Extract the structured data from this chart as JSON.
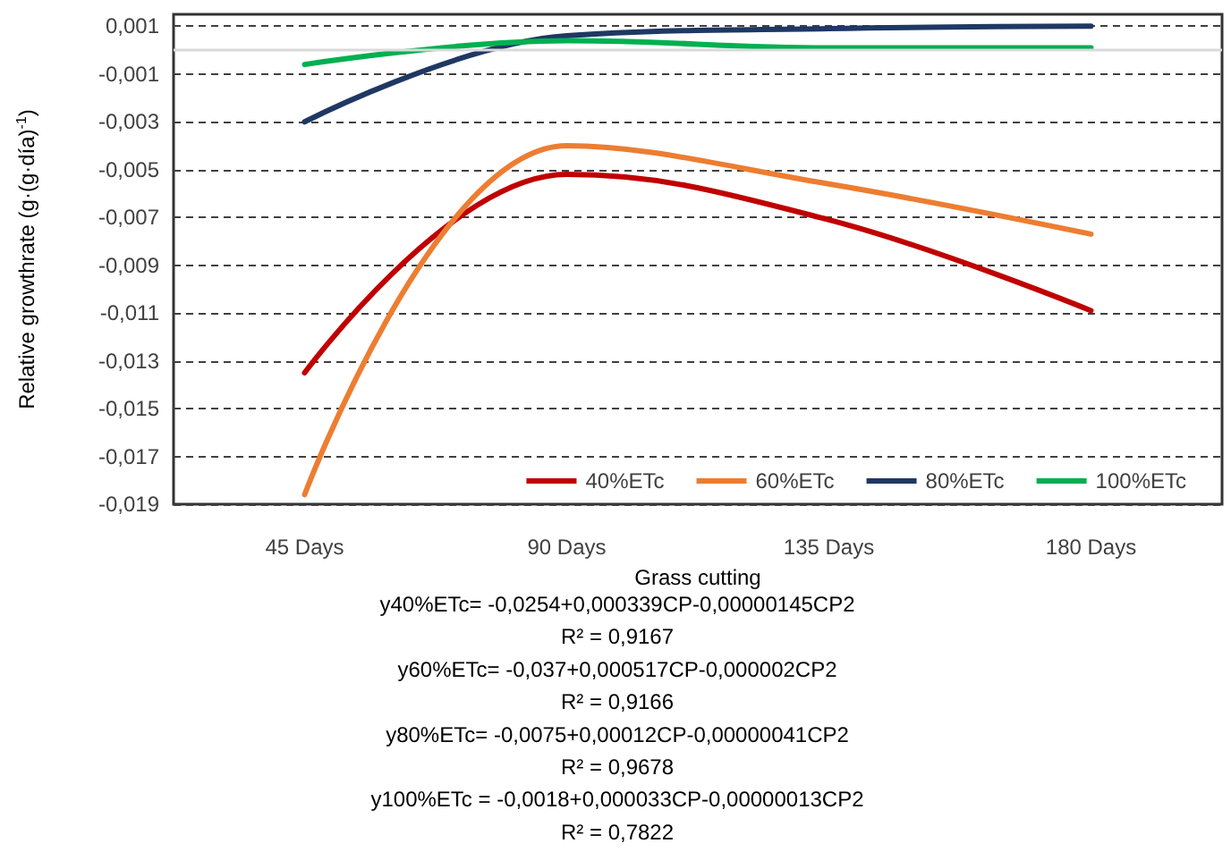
{
  "chart_data": {
    "type": "line",
    "xlabel": "Grass cutting",
    "ylabel": "Relative growthrate (g·(g·día)$^{-1}$)",
    "categories": [
      "45 Days",
      "90 Days",
      "135 Days",
      "180 Days"
    ],
    "series": [
      {
        "name": "40%ETc",
        "color": "#c00000",
        "values": [
          -0.0135,
          -0.0052,
          -0.0071,
          -0.0109
        ]
      },
      {
        "name": "60%ETc",
        "color": "#ed7d31",
        "values": [
          -0.0186,
          -0.004,
          -0.0056,
          -0.0077
        ]
      },
      {
        "name": "80%ETc",
        "color": "#1f3864",
        "values": [
          -0.003,
          0.0006,
          0.0009,
          0.001
        ]
      },
      {
        "name": "100%ETc",
        "color": "#00b050",
        "values": [
          -0.0006,
          0.0004,
          0.0001,
          0.0001
        ]
      }
    ],
    "ylim": [
      -0.019,
      0.0015
    ],
    "yticks": [
      {
        "value": 0.001,
        "label": "0,001"
      },
      {
        "value": -0.001,
        "label": "-0,001"
      },
      {
        "value": -0.003,
        "label": "-0,003"
      },
      {
        "value": -0.005,
        "label": "-0,005"
      },
      {
        "value": -0.007,
        "label": "-0,007"
      },
      {
        "value": -0.009,
        "label": "-0,009"
      },
      {
        "value": -0.011,
        "label": "-0,011"
      },
      {
        "value": -0.013,
        "label": "-0,013"
      },
      {
        "value": -0.015,
        "label": "-0,015"
      },
      {
        "value": -0.017,
        "label": "-0,017"
      },
      {
        "value": -0.019,
        "label": "-0,019"
      }
    ],
    "ref_lines": [
      {
        "axis": "y",
        "value": 0,
        "color": "#d9d9d9"
      }
    ],
    "grid": "y",
    "legend": "bottom right",
    "marker": "none",
    "line_style": "solid",
    "annotations": [
      "y40%ETc= -0,0254+0,000339CP-0,00000145CP2",
      "R² = 0,9167",
      "y60%ETc= -0,037+0,000517CP-0,000002CP2",
      "R² = 0,9166",
      "y80%ETc= -0,0075+0,00012CP-0,00000041CP2",
      "R² = 0,9678",
      "y100%ETc = -0,0018+0,000033CP-0,00000013CP2",
      "R² = 0,7822"
    ]
  }
}
